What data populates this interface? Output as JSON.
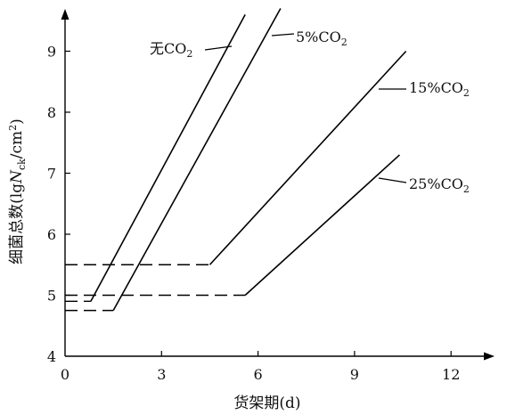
{
  "chart_data": {
    "type": "line",
    "xlabel": "货架期(d)",
    "ylabel": "细菌总数(lgN_ck/cm²)",
    "ylabel_parts": {
      "prefix": "细菌总数(lg",
      "N": "N",
      "sub": "ck",
      "mid": "/cm",
      "sup": "2",
      "suffix": ")"
    },
    "xlim": [
      0,
      14.5
    ],
    "ylim": [
      4,
      9.7
    ],
    "xticks": [
      0,
      3,
      6,
      9,
      12
    ],
    "yticks": [
      4,
      5,
      6,
      7,
      8,
      9
    ],
    "grid": false,
    "legend": "none",
    "series": [
      {
        "name": "无CO₂",
        "label_main": "无CO",
        "label_sub": "2",
        "lag": [
          [
            0,
            4.9
          ],
          [
            0.8,
            4.9
          ]
        ],
        "growth": [
          [
            0.8,
            4.9
          ],
          [
            5.6,
            9.6
          ]
        ]
      },
      {
        "name": "5%CO₂",
        "label_main": "5%CO",
        "label_sub": "2",
        "lag": [
          [
            0,
            4.75
          ],
          [
            1.5,
            4.75
          ]
        ],
        "growth": [
          [
            1.5,
            4.75
          ],
          [
            6.7,
            9.7
          ]
        ]
      },
      {
        "name": "15%CO₂",
        "label_main": "15%CO",
        "label_sub": "2",
        "lag": [
          [
            0,
            5.5
          ],
          [
            4.5,
            5.5
          ]
        ],
        "growth": [
          [
            4.5,
            5.5
          ],
          [
            10.6,
            9.0
          ]
        ]
      },
      {
        "name": "25%CO₂",
        "label_main": "25%CO",
        "label_sub": "2",
        "lag": [
          [
            0,
            5.0
          ],
          [
            5.6,
            5.0
          ]
        ],
        "growth": [
          [
            5.6,
            5.0
          ],
          [
            10.4,
            7.3
          ]
        ]
      }
    ]
  }
}
